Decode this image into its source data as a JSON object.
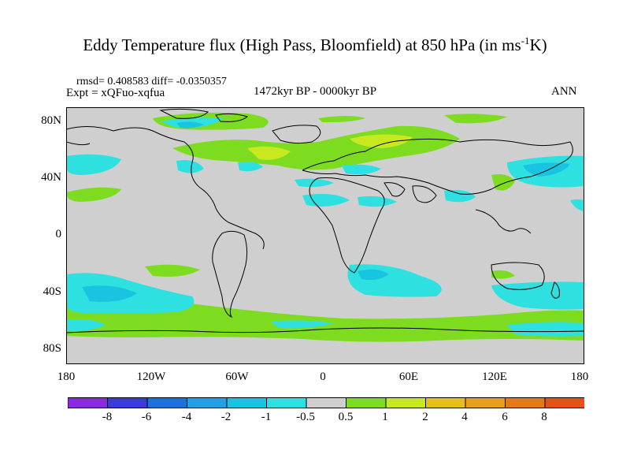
{
  "header": {
    "title_prefix": "Eddy Temperature flux (High Pass, Bloomfield) at 850 hPa (in ms",
    "title_sup": "-1",
    "title_suffix": "K)",
    "stats": "rmsd= 0.408583 diff= -0.0350357",
    "experiment": "Expt = xQFuo-xqfua",
    "period": "1472kyr BP - 0000kyr BP",
    "season": "ANN"
  },
  "map": {
    "lat_ticks": [
      "80N",
      "40N",
      "0",
      "40S",
      "80S"
    ],
    "lon_ticks": [
      "180",
      "120W",
      "60W",
      "0",
      "60E",
      "120E",
      "180"
    ],
    "background_color": "#cfcfcf"
  },
  "colorbar": {
    "labels": [
      "-8",
      "-6",
      "-4",
      "-2",
      "-1",
      "-0.5",
      "0.5",
      "1",
      "2",
      "4",
      "6",
      "8"
    ],
    "colors": [
      "#8a2be2",
      "#3b3bdb",
      "#1e6fe0",
      "#1fa1e3",
      "#18c4e0",
      "#2fe0e0",
      "#cfcfcf",
      "#7ddc1f",
      "#c8e81f",
      "#e6c01a",
      "#e6a01a",
      "#e67a14",
      "#e6501a"
    ]
  }
}
